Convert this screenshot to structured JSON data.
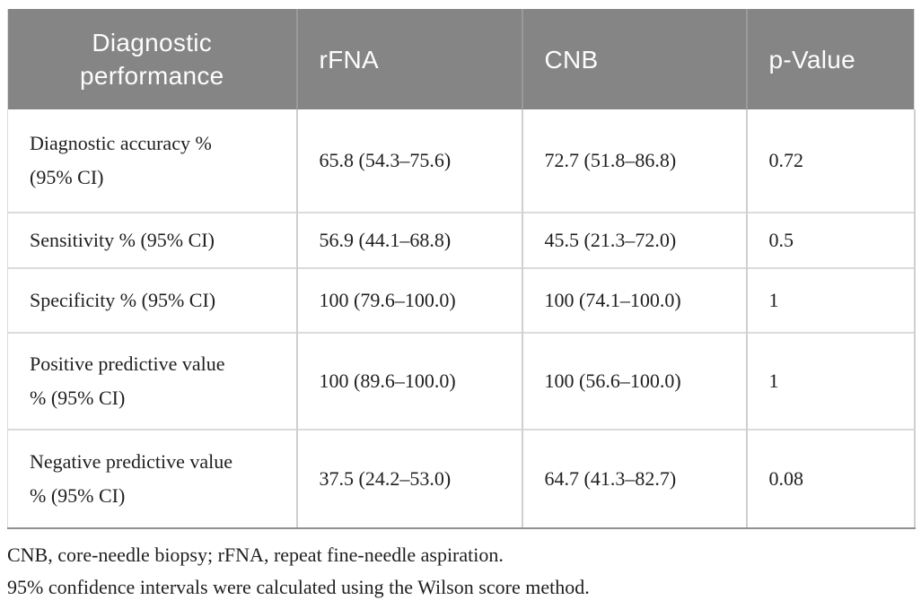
{
  "colors": {
    "header_bg": "#858585",
    "header_text": "#fdfdfd",
    "body_text": "#1f1f1f",
    "row_divider": "#dbdbdb",
    "column_divider": "#cfcfcf",
    "table_bottom_border": "#8f8f8f"
  },
  "table": {
    "columns": [
      {
        "label": "Diagnostic performance"
      },
      {
        "label": "rFNA"
      },
      {
        "label": "CNB"
      },
      {
        "label": "p-Value"
      }
    ],
    "rows": [
      {
        "metric": "Diagnostic accuracy % (95% CI)",
        "rfna": "65.8 (54.3–75.6)",
        "cnb": "72.7 (51.8–86.8)",
        "p": "0.72"
      },
      {
        "metric": "Sensitivity % (95% CI)",
        "rfna": "56.9 (44.1–68.8)",
        "cnb": "45.5 (21.3–72.0)",
        "p": "0.5"
      },
      {
        "metric": "Specificity % (95% CI)",
        "rfna": "100 (79.6–100.0)",
        "cnb": "100 (74.1–100.0)",
        "p": "1"
      },
      {
        "metric": "Positive predictive value % (95% CI)",
        "rfna": "100 (89.6–100.0)",
        "cnb": "100 (56.6–100.0)",
        "p": "1"
      },
      {
        "metric": "Negative predictive value % (95% CI)",
        "rfna": "37.5 (24.2–53.0)",
        "cnb": "64.7 (41.3–82.7)",
        "p": "0.08"
      }
    ],
    "footnotes": [
      "CNB, core-needle biopsy; rFNA, repeat fine-needle aspiration.",
      "95% confidence intervals were calculated using the Wilson score method."
    ]
  }
}
